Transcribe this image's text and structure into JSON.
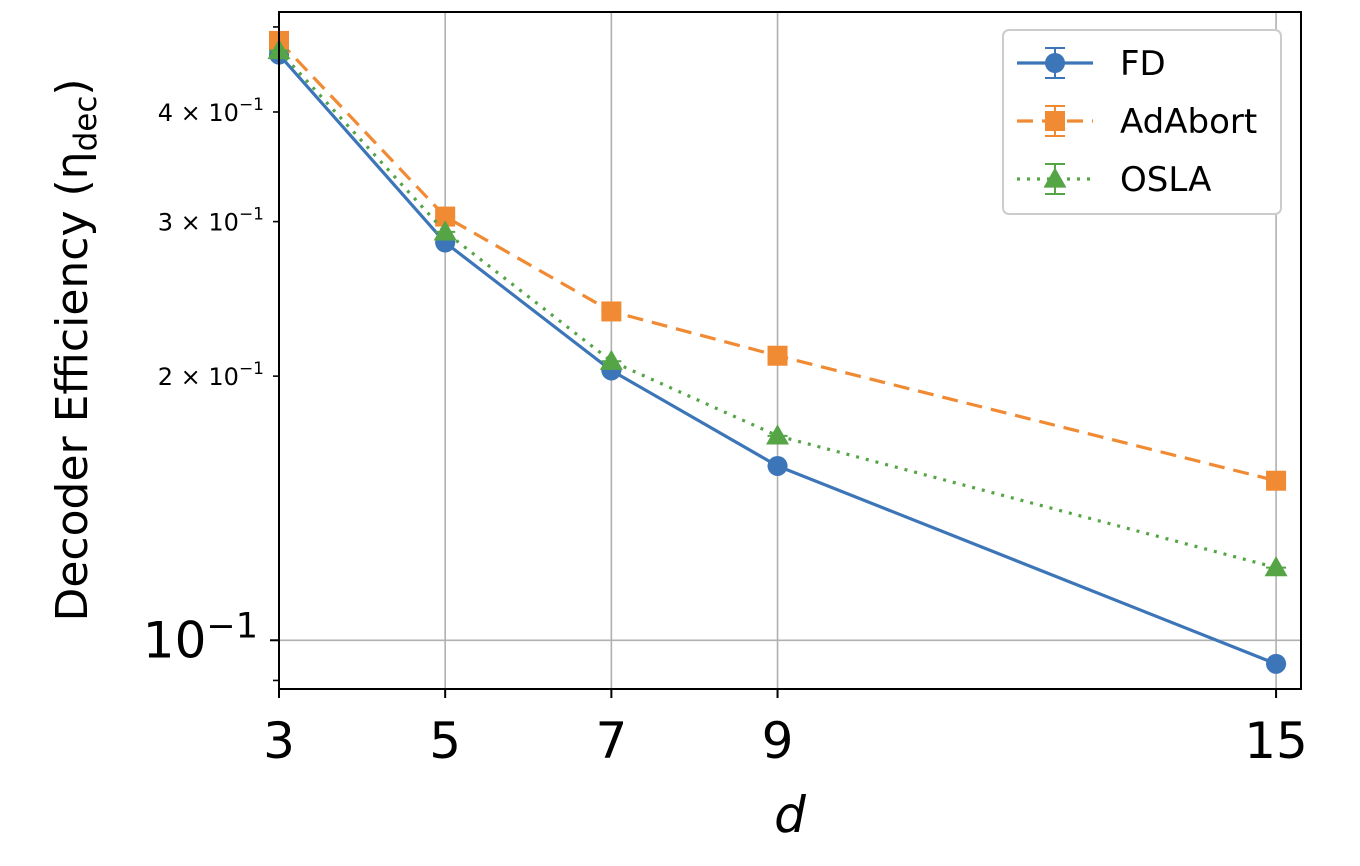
{
  "chart_data": {
    "type": "line",
    "xlabel": "d",
    "ylabel": "Decoder Efficiency (η",
    "ylabel_sub": "dec",
    "ylabel_close": ")",
    "yscale": "log",
    "xlim": [
      3,
      15.3
    ],
    "ylim": [
      0.088,
      0.52
    ],
    "grid": true,
    "legend_position": "top-right",
    "x": [
      3,
      5,
      7,
      9,
      15
    ],
    "x_tick_labels": [
      "3",
      "5",
      "7",
      "9",
      "15"
    ],
    "y_ticks": [
      {
        "value": 0.1,
        "base": "10",
        "exp": "−1",
        "mantissa": "",
        "major": true
      },
      {
        "value": 0.2,
        "base": "10",
        "exp": "−1",
        "mantissa": "2 × ",
        "major": false
      },
      {
        "value": 0.3,
        "base": "10",
        "exp": "−1",
        "mantissa": "3 × ",
        "major": false
      },
      {
        "value": 0.4,
        "base": "10",
        "exp": "−1",
        "mantissa": "4 × ",
        "major": false
      }
    ],
    "series": [
      {
        "name": "FD",
        "color": "#3d76b8",
        "marker": "circle",
        "dash": "",
        "values": [
          0.465,
          0.284,
          0.203,
          0.158,
          0.094
        ]
      },
      {
        "name": "AdAbort",
        "color": "#f08a33",
        "marker": "square",
        "dash": "16,9",
        "values": [
          0.482,
          0.304,
          0.237,
          0.211,
          0.152
        ]
      },
      {
        "name": "OSLA",
        "color": "#55a547",
        "marker": "triangle",
        "dash": "3,7",
        "values": [
          0.47,
          0.292,
          0.208,
          0.171,
          0.121
        ]
      }
    ]
  }
}
